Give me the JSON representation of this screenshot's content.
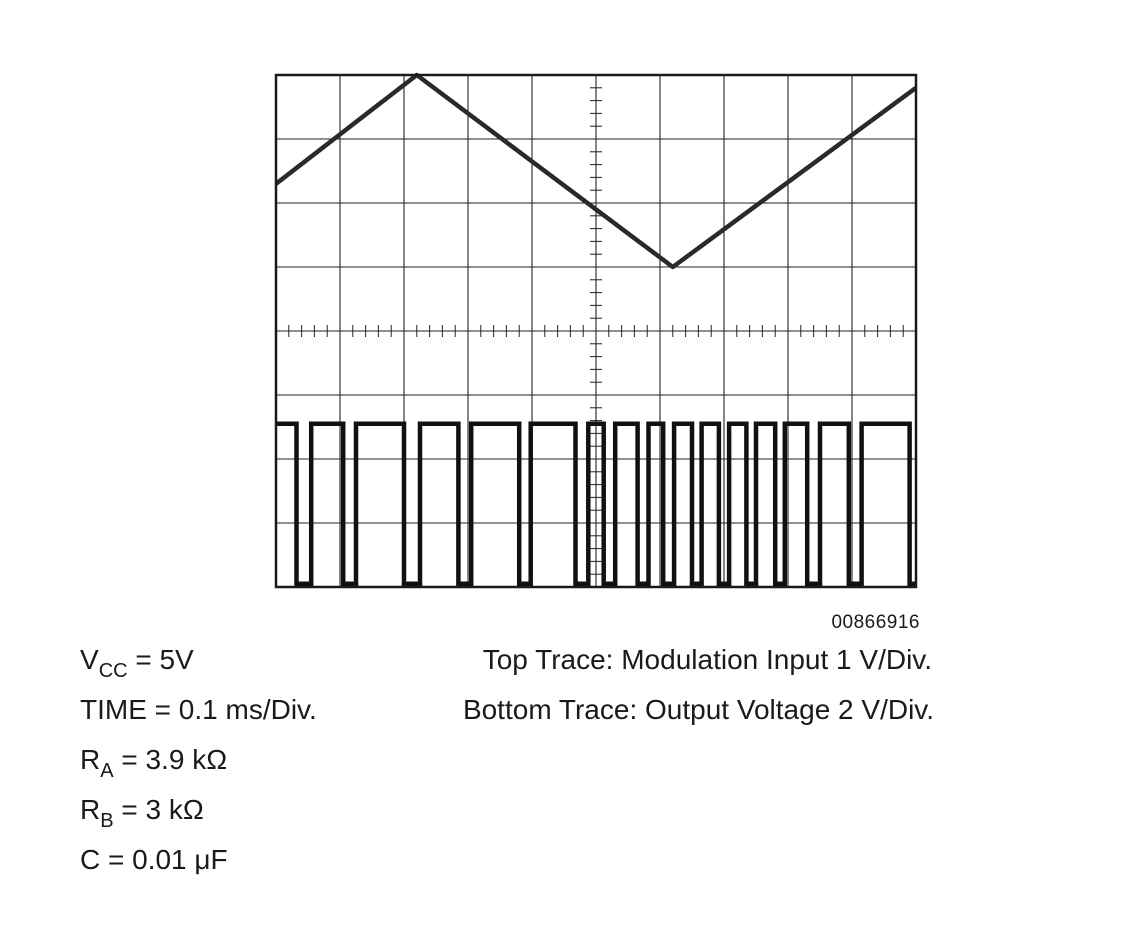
{
  "chart_data": {
    "type": "line",
    "grid": true,
    "grid_divisions": {
      "x": 10,
      "y": 8
    },
    "x_unit": "div",
    "y_unit": "div",
    "xlim": [
      0,
      10
    ],
    "ylim": [
      0,
      8
    ],
    "series": [
      {
        "kind": "triangle",
        "points": [
          [
            0,
            6.3
          ],
          [
            2.2,
            8.0
          ],
          [
            6.2,
            5.0
          ],
          [
            10,
            7.8
          ]
        ]
      },
      {
        "kind": "pulse",
        "low": 0.05,
        "high": 2.55,
        "transitions": [
          0.32,
          0.55,
          1.05,
          1.25,
          2.0,
          2.25,
          2.85,
          3.05,
          3.8,
          3.98,
          4.68,
          4.88,
          5.12,
          5.3,
          5.65,
          5.82,
          6.05,
          6.22,
          6.5,
          6.65,
          6.92,
          7.08,
          7.35,
          7.5,
          7.8,
          7.95,
          8.3,
          8.5,
          8.95,
          9.15,
          9.9
        ]
      }
    ]
  },
  "figure_id": "00866916",
  "conditions": {
    "vcc": {
      "symbol": "V",
      "sub": "CC",
      "rest": " = 5V"
    },
    "time": "TIME = 0.1 ms/Div.",
    "ra": {
      "symbol": "R",
      "sub": "A",
      "rest": " = 3.9 kΩ"
    },
    "rb": {
      "symbol": "R",
      "sub": "B",
      "rest": " = 3 kΩ"
    },
    "c": "C = 0.01 μF"
  },
  "traces": {
    "top": "Top Trace: Modulation Input 1 V/Div.",
    "bottom": "Bottom Trace: Output Voltage 2 V/Div."
  }
}
